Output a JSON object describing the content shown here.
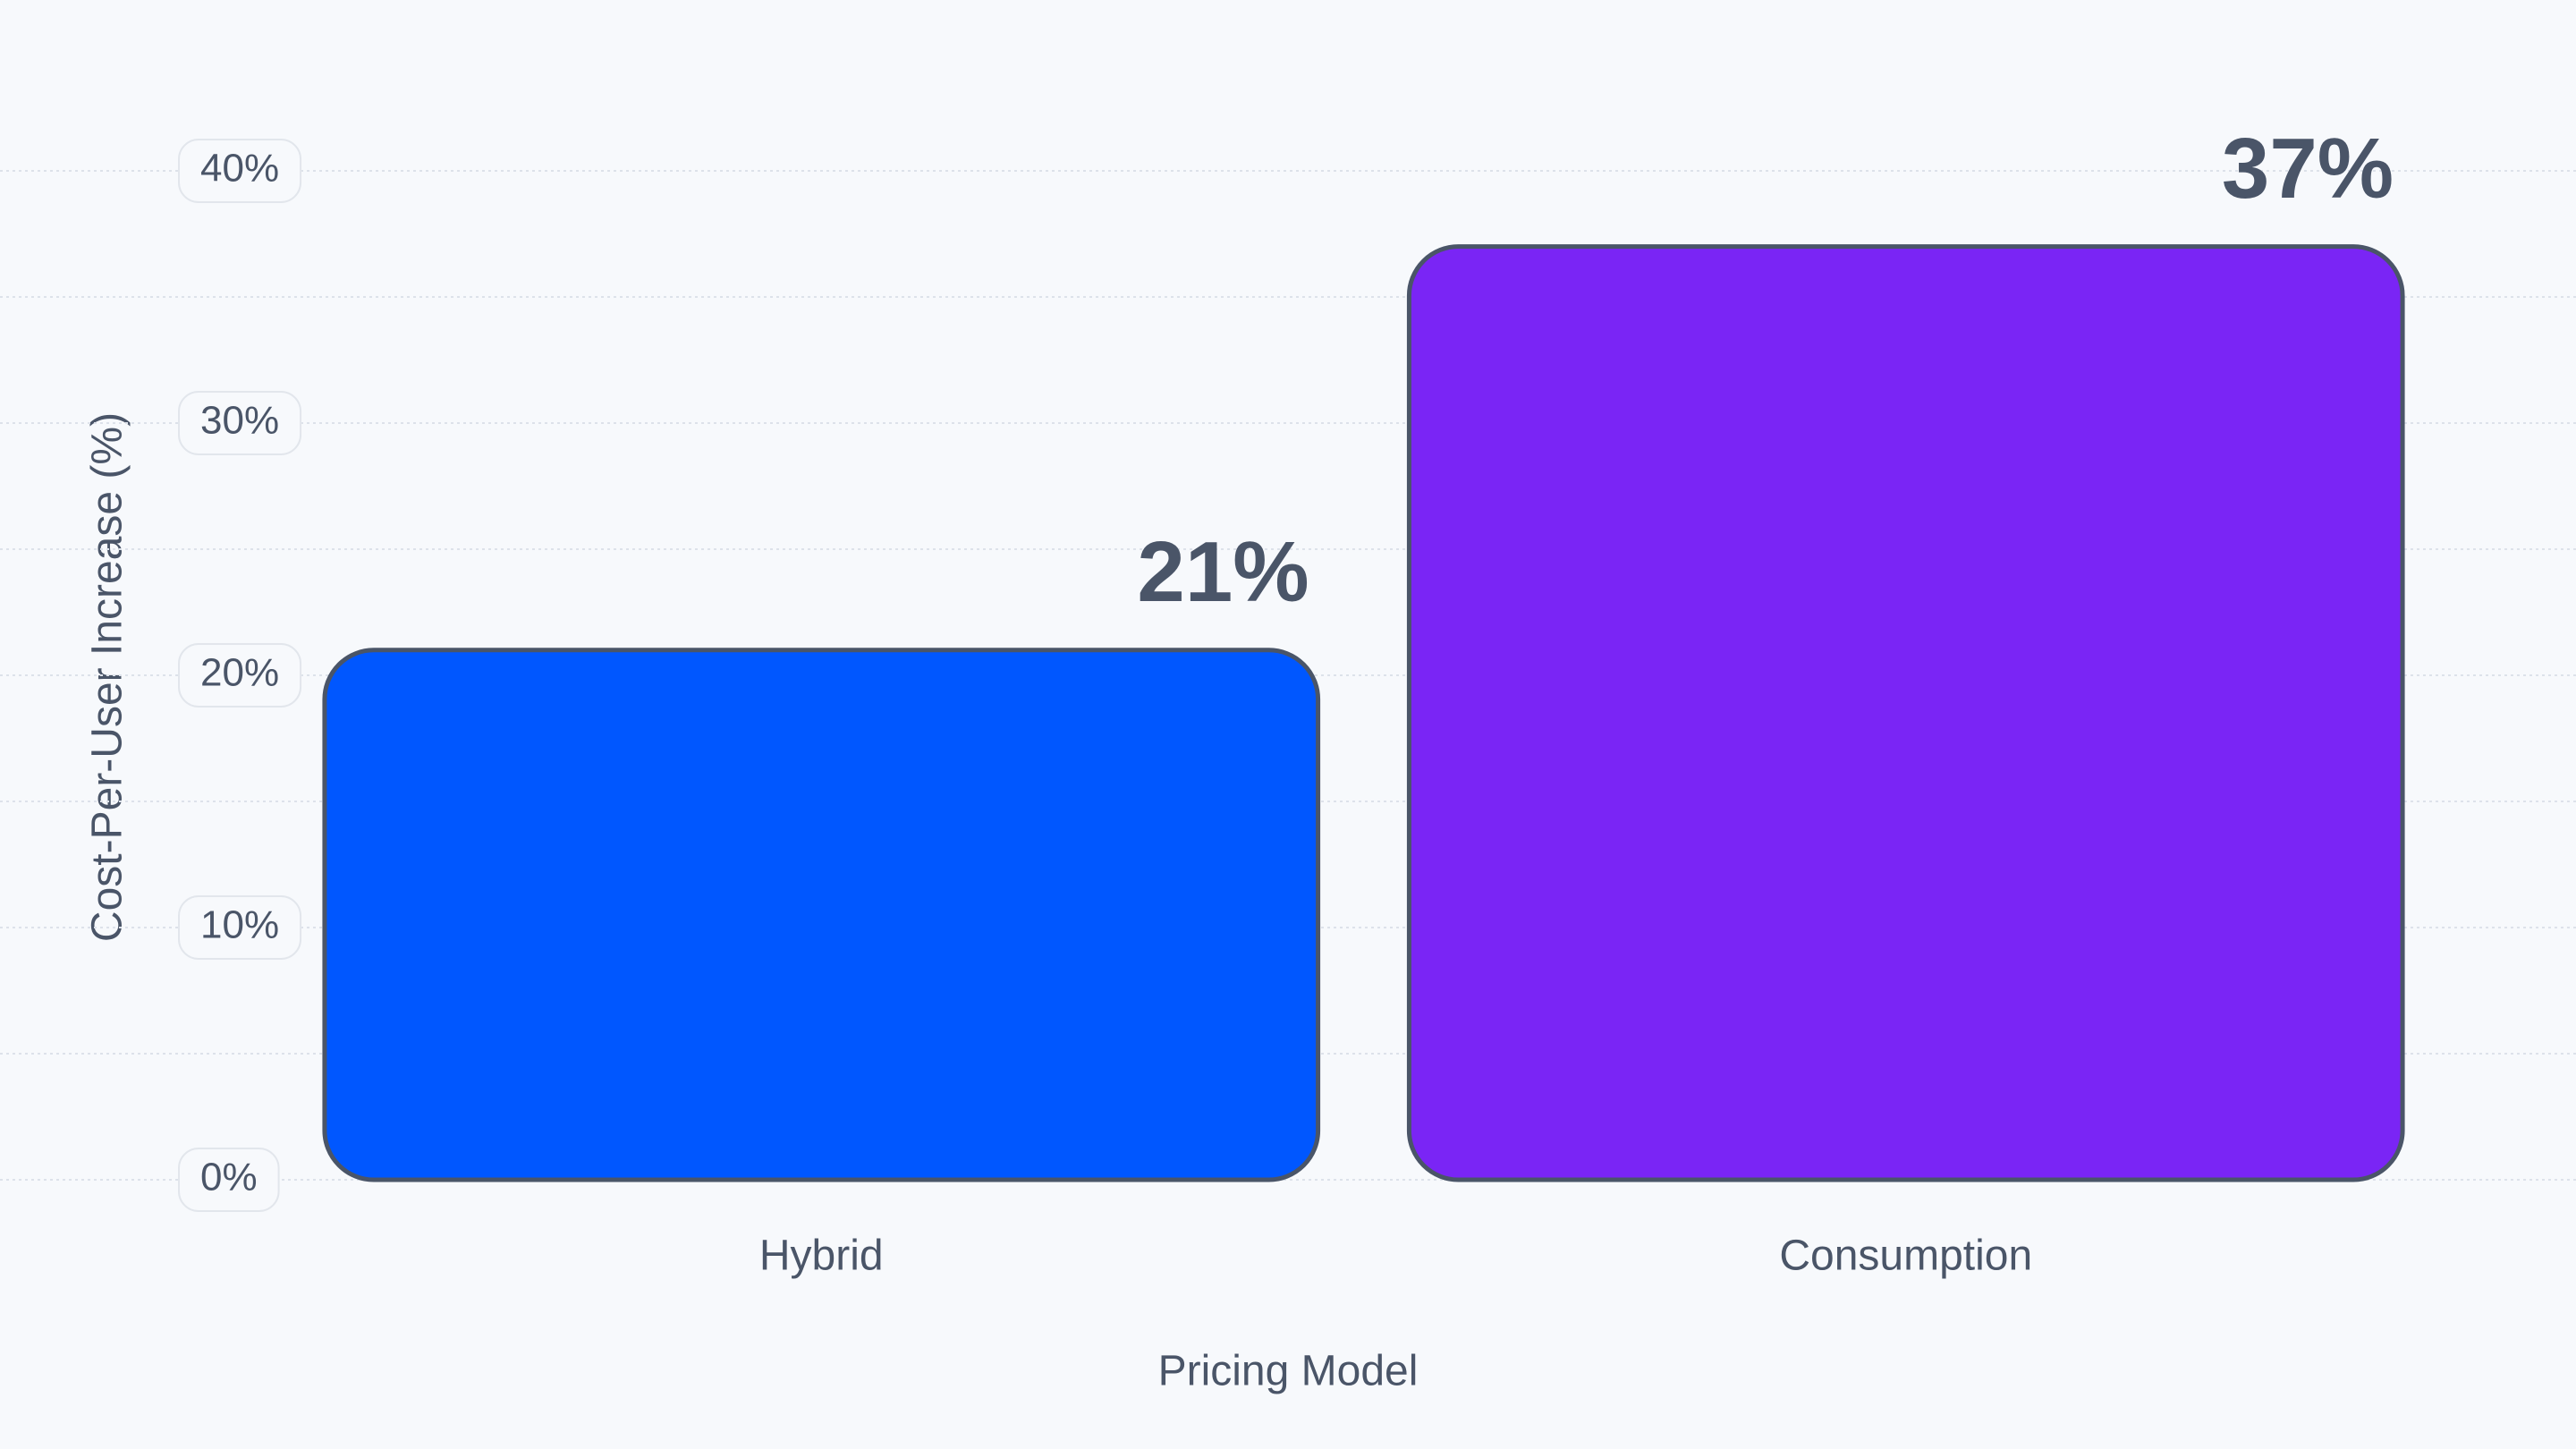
{
  "chart_data": {
    "type": "bar",
    "x_label": "Pricing Model",
    "y_label": "Cost-Per-User Increase (%)",
    "categories": [
      "Hybrid",
      "Consumption"
    ],
    "values": [
      21,
      37
    ],
    "value_labels": [
      "21%",
      "37%"
    ],
    "colors": [
      "#0057ff",
      "#7a25f5"
    ],
    "ylim": [
      0,
      40
    ],
    "yticks": [
      {
        "value": 0,
        "label": "0%"
      },
      {
        "value": 10,
        "label": "10%"
      },
      {
        "value": 20,
        "label": "20%"
      },
      {
        "value": 30,
        "label": "30%"
      },
      {
        "value": 40,
        "label": "40%"
      }
    ],
    "y_minor_ticks": [
      5,
      15,
      25,
      35
    ],
    "grid": true
  }
}
